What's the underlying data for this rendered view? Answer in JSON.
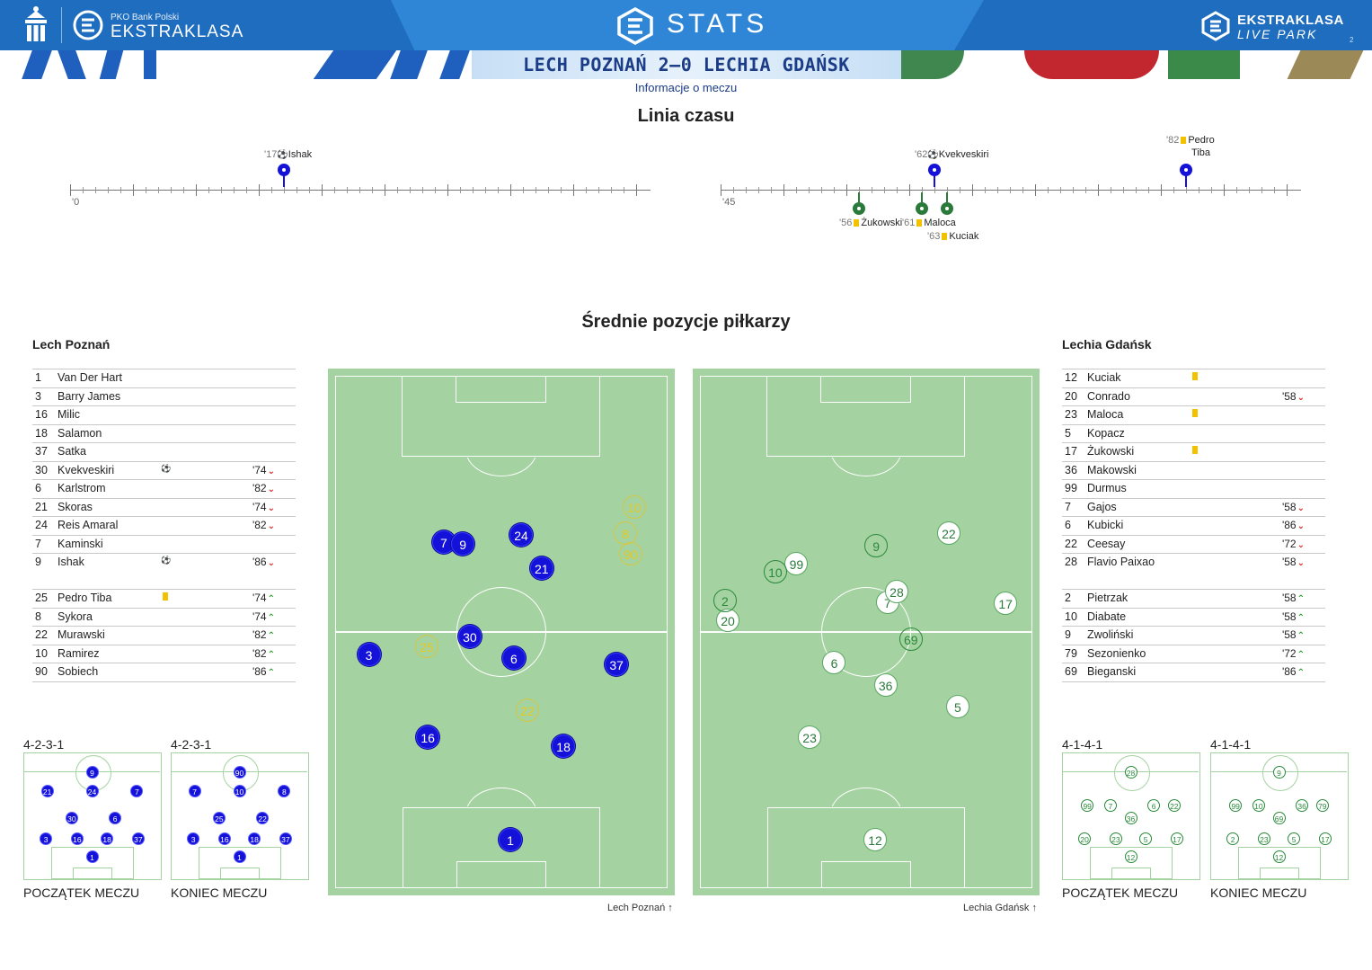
{
  "header": {
    "pko_subtitle": "PKO Bank Polski",
    "league_name": "EKSTRAKLASA",
    "stats_title": "STATS",
    "live_line1": "EKSTRAKLASA",
    "live_line2": "LIVE PARK",
    "page_number": "2",
    "match_score": "LECH POZNAŃ 2–0 LECHIA GDAŃSK",
    "section_label": "Informacje o meczu"
  },
  "timeline": {
    "title": "Linia czasu",
    "axis_labels": [
      "'0",
      "'45"
    ],
    "events": [
      {
        "minute": "'17",
        "type": "goal",
        "player": "Ishak",
        "team": "home"
      },
      {
        "minute": "'62",
        "type": "goal",
        "player": "Kvekveskiri",
        "team": "home"
      },
      {
        "minute": "'82",
        "type": "yellow",
        "player": "Pedro",
        "player2": "Tiba",
        "team": "home"
      },
      {
        "minute": "'56",
        "type": "yellow",
        "player": "Żukowski",
        "team": "away"
      },
      {
        "minute": "'61",
        "type": "yellow",
        "player": "Maloca",
        "team": "away"
      },
      {
        "minute": "'63",
        "type": "yellow",
        "player": "Kuciak",
        "team": "away"
      }
    ]
  },
  "positions": {
    "title": "Średnie pozycje piłkarzy",
    "home": {
      "name": "Lech Poznań",
      "starters": [
        {
          "num": "1",
          "name": "Van Der Hart",
          "icon": "",
          "sub": ""
        },
        {
          "num": "3",
          "name": "Barry James",
          "icon": "",
          "sub": ""
        },
        {
          "num": "16",
          "name": "Milic",
          "icon": "",
          "sub": ""
        },
        {
          "num": "18",
          "name": "Salamon",
          "icon": "",
          "sub": ""
        },
        {
          "num": "37",
          "name": "Satka",
          "icon": "",
          "sub": ""
        },
        {
          "num": "30",
          "name": "Kvekveskiri",
          "icon": "ball",
          "sub": "'74"
        },
        {
          "num": "6",
          "name": "Karlstrom",
          "icon": "",
          "sub": "'82"
        },
        {
          "num": "21",
          "name": "Skoras",
          "icon": "",
          "sub": "'74"
        },
        {
          "num": "24",
          "name": "Reis Amaral",
          "icon": "",
          "sub": "'82"
        },
        {
          "num": "7",
          "name": "Kaminski",
          "icon": "",
          "sub": ""
        },
        {
          "num": "9",
          "name": "Ishak",
          "icon": "ball",
          "sub": "'86"
        }
      ],
      "subs": [
        {
          "num": "25",
          "name": "Pedro Tiba",
          "icon": "yellow",
          "sub": "'74"
        },
        {
          "num": "8",
          "name": "Sykora",
          "icon": "",
          "sub": "'74"
        },
        {
          "num": "22",
          "name": "Murawski",
          "icon": "",
          "sub": "'82"
        },
        {
          "num": "10",
          "name": "Ramirez",
          "icon": "",
          "sub": "'82"
        },
        {
          "num": "90",
          "name": "Sobiech",
          "icon": "",
          "sub": "'86"
        }
      ],
      "direction_label": "Lech Poznań",
      "formation_start": "4-2-3-1",
      "formation_end": "4-2-3-1",
      "caption_start": "POCZĄTEK MECZU",
      "caption_end": "KONIEC MECZU"
    },
    "away": {
      "name": "Lechia Gdańsk",
      "starters": [
        {
          "num": "12",
          "name": "Kuciak",
          "icon": "yellow",
          "sub": ""
        },
        {
          "num": "20",
          "name": "Conrado",
          "icon": "",
          "sub": "'58"
        },
        {
          "num": "23",
          "name": "Maloca",
          "icon": "yellow",
          "sub": ""
        },
        {
          "num": "5",
          "name": "Kopacz",
          "icon": "",
          "sub": ""
        },
        {
          "num": "17",
          "name": "Żukowski",
          "icon": "yellow",
          "sub": ""
        },
        {
          "num": "36",
          "name": "Makowski",
          "icon": "",
          "sub": ""
        },
        {
          "num": "99",
          "name": "Durmus",
          "icon": "",
          "sub": ""
        },
        {
          "num": "7",
          "name": "Gajos",
          "icon": "",
          "sub": "'58"
        },
        {
          "num": "6",
          "name": "Kubicki",
          "icon": "",
          "sub": "'86"
        },
        {
          "num": "22",
          "name": "Ceesay",
          "icon": "",
          "sub": "'72"
        },
        {
          "num": "28",
          "name": "Flavio Paixao",
          "icon": "",
          "sub": "'58"
        }
      ],
      "subs": [
        {
          "num": "2",
          "name": "Pietrzak",
          "icon": "",
          "sub": "'58"
        },
        {
          "num": "10",
          "name": "Diabate",
          "icon": "",
          "sub": "'58"
        },
        {
          "num": "9",
          "name": "Zwoliński",
          "icon": "",
          "sub": "'58"
        },
        {
          "num": "79",
          "name": "Sezonienko",
          "icon": "",
          "sub": "'72"
        },
        {
          "num": "69",
          "name": "Bieganski",
          "icon": "",
          "sub": "'86"
        }
      ],
      "direction_label": "Lechia Gdańsk",
      "formation_start": "4-1-4-1",
      "formation_end": "4-1-4-1",
      "caption_start": "POCZĄTEK MECZU",
      "caption_end": "KONIEC MECZU"
    }
  },
  "colors": {
    "home_primary": "#1412d9",
    "home_sub": "#e6c91e",
    "away_primary": "#2a7a3c",
    "pitch": "#a4d2a1",
    "header_blue": "#1e6dbf",
    "sub_out": "#d22222",
    "sub_in": "#2a9a2a",
    "yellow_card": "#f2c200"
  }
}
